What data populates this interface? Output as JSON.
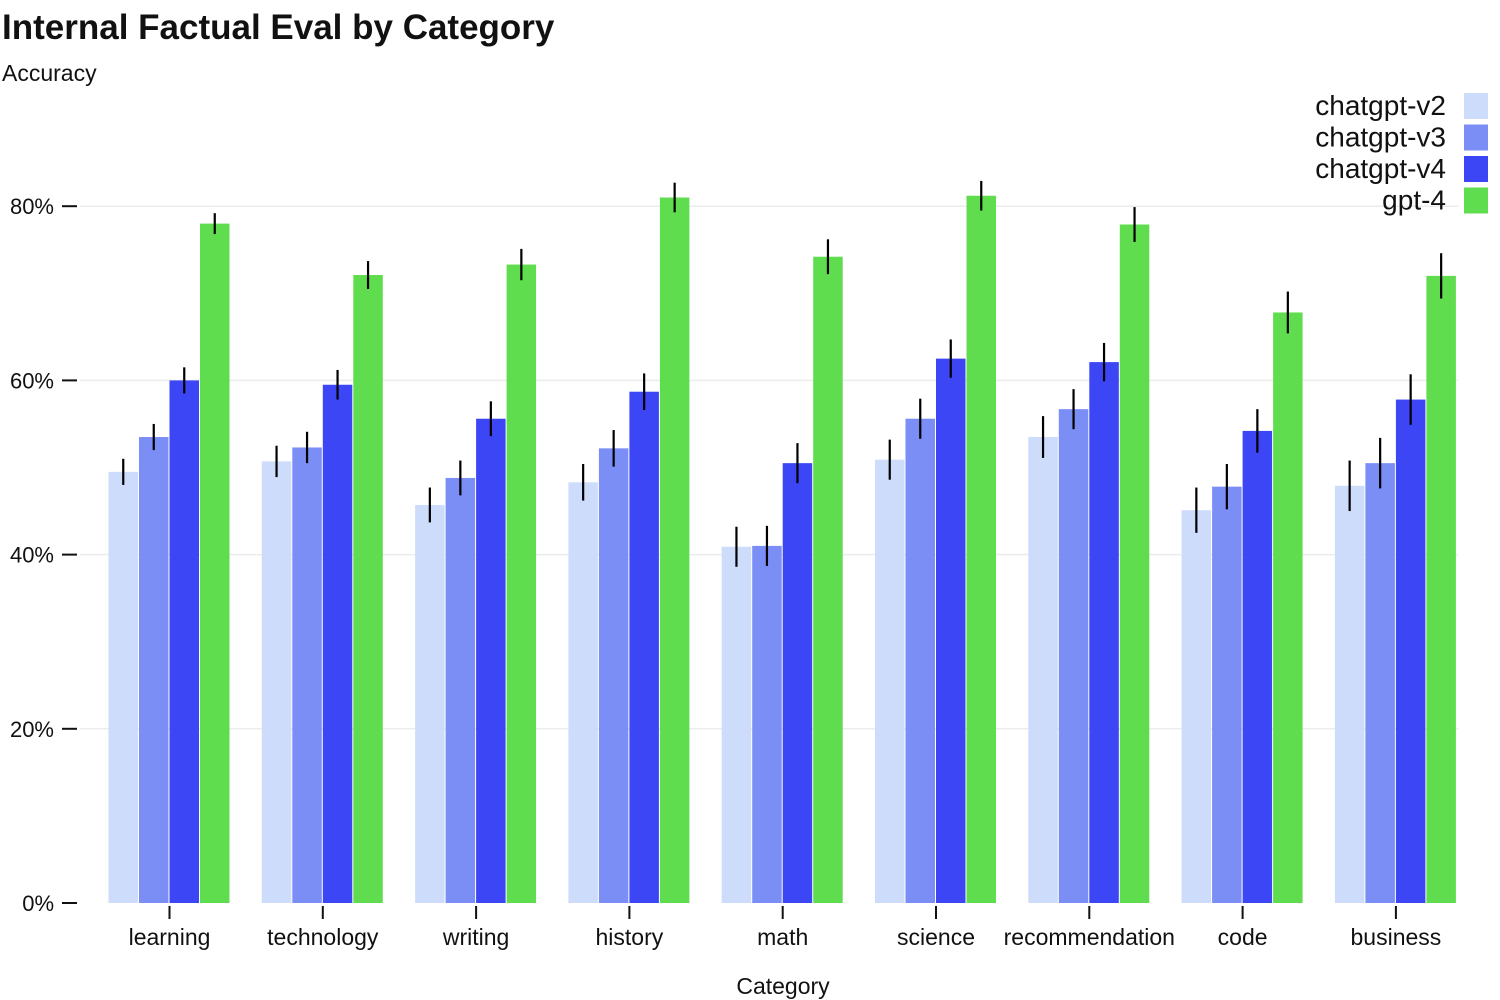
{
  "chart_data": {
    "type": "bar",
    "title": "Internal Factual Eval by Category",
    "subtitle": "Accuracy",
    "xlabel": "Category",
    "ylabel": "Accuracy",
    "ylim": [
      0,
      0.85
    ],
    "yticks": [
      0,
      0.2,
      0.4,
      0.6,
      0.8
    ],
    "ytick_labels": [
      "0%",
      "20%",
      "40%",
      "60%",
      "80%"
    ],
    "grid": true,
    "legend_position": "top-right",
    "categories": [
      "learning",
      "technology",
      "writing",
      "history",
      "math",
      "science",
      "recommendation",
      "code",
      "business"
    ],
    "series": [
      {
        "name": "chatgpt-v2",
        "color": "#cddcfb",
        "values": [
          0.495,
          0.507,
          0.457,
          0.483,
          0.409,
          0.509,
          0.535,
          0.451,
          0.479
        ],
        "error": [
          0.015,
          0.018,
          0.02,
          0.021,
          0.023,
          0.023,
          0.024,
          0.026,
          0.029
        ]
      },
      {
        "name": "chatgpt-v3",
        "color": "#7a8ef6",
        "values": [
          0.535,
          0.523,
          0.488,
          0.522,
          0.41,
          0.556,
          0.567,
          0.478,
          0.505
        ],
        "error": [
          0.015,
          0.018,
          0.02,
          0.021,
          0.023,
          0.023,
          0.023,
          0.026,
          0.029
        ]
      },
      {
        "name": "chatgpt-v4",
        "color": "#3c46f5",
        "values": [
          0.6,
          0.595,
          0.556,
          0.587,
          0.505,
          0.625,
          0.621,
          0.542,
          0.578
        ],
        "error": [
          0.015,
          0.017,
          0.02,
          0.021,
          0.023,
          0.022,
          0.022,
          0.025,
          0.029
        ]
      },
      {
        "name": "gpt-4",
        "color": "#60dd4f",
        "values": [
          0.78,
          0.721,
          0.733,
          0.81,
          0.742,
          0.812,
          0.779,
          0.678,
          0.72
        ],
        "error": [
          0.012,
          0.016,
          0.018,
          0.017,
          0.02,
          0.017,
          0.02,
          0.024,
          0.026
        ]
      }
    ]
  }
}
